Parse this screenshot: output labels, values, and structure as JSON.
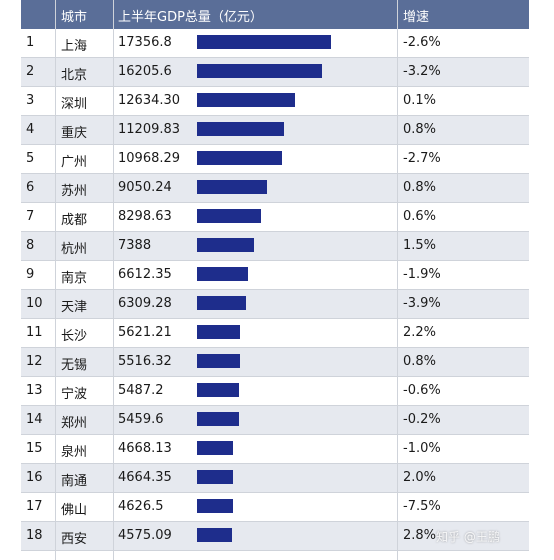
{
  "header": {
    "city": "城市",
    "gdp": "上半年GDP总量（亿元）",
    "growth": "增速"
  },
  "chart_data": {
    "type": "table",
    "columns": [
      "",
      "城市",
      "上半年GDP总量（亿元）",
      "增速"
    ],
    "rows": [
      {
        "rank": "1",
        "city": "上海",
        "gdp": "17356.8",
        "gdp_value": 17356.8,
        "growth": "-2.6%"
      },
      {
        "rank": "2",
        "city": "北京",
        "gdp": "16205.6",
        "gdp_value": 16205.6,
        "growth": "-3.2%"
      },
      {
        "rank": "3",
        "city": "深圳",
        "gdp": "12634.30",
        "gdp_value": 12634.3,
        "growth": "0.1%"
      },
      {
        "rank": "4",
        "city": "重庆",
        "gdp": "11209.83",
        "gdp_value": 11209.83,
        "growth": "0.8%"
      },
      {
        "rank": "5",
        "city": "广州",
        "gdp": "10968.29",
        "gdp_value": 10968.29,
        "growth": "-2.7%"
      },
      {
        "rank": "6",
        "city": "苏州",
        "gdp": "9050.24",
        "gdp_value": 9050.24,
        "growth": "0.8%"
      },
      {
        "rank": "7",
        "city": "成都",
        "gdp": "8298.63",
        "gdp_value": 8298.63,
        "growth": "0.6%"
      },
      {
        "rank": "8",
        "city": "杭州",
        "gdp": "7388",
        "gdp_value": 7388,
        "growth": "1.5%"
      },
      {
        "rank": "9",
        "city": "南京",
        "gdp": "6612.35",
        "gdp_value": 6612.35,
        "growth": "-1.9%"
      },
      {
        "rank": "10",
        "city": "天津",
        "gdp": "6309.28",
        "gdp_value": 6309.28,
        "growth": "-3.9%"
      },
      {
        "rank": "11",
        "city": "长沙",
        "gdp": "5621.21",
        "gdp_value": 5621.21,
        "growth": "2.2%"
      },
      {
        "rank": "12",
        "city": "无锡",
        "gdp": "5516.32",
        "gdp_value": 5516.32,
        "growth": "0.8%"
      },
      {
        "rank": "13",
        "city": "宁波",
        "gdp": "5487.2",
        "gdp_value": 5487.2,
        "growth": "-0.6%"
      },
      {
        "rank": "14",
        "city": "郑州",
        "gdp": "5459.6",
        "gdp_value": 5459.6,
        "growth": "-0.2%"
      },
      {
        "rank": "15",
        "city": "泉州",
        "gdp": "4668.13",
        "gdp_value": 4668.13,
        "growth": "-1.0%"
      },
      {
        "rank": "16",
        "city": "南通",
        "gdp": "4664.35",
        "gdp_value": 4664.35,
        "growth": "2.0%"
      },
      {
        "rank": "17",
        "city": "佛山",
        "gdp": "4626.5",
        "gdp_value": 4626.5,
        "growth": "-7.5%"
      },
      {
        "rank": "18",
        "city": "西安",
        "gdp": "4575.09",
        "gdp_value": 4575.09,
        "growth": "2.8%"
      }
    ],
    "colors": {
      "header_bg": "#5a6e98",
      "bar": "#1e2d8c",
      "alt_row": "#e6e9ef"
    }
  },
  "watermark": "知乎 @王鹏"
}
